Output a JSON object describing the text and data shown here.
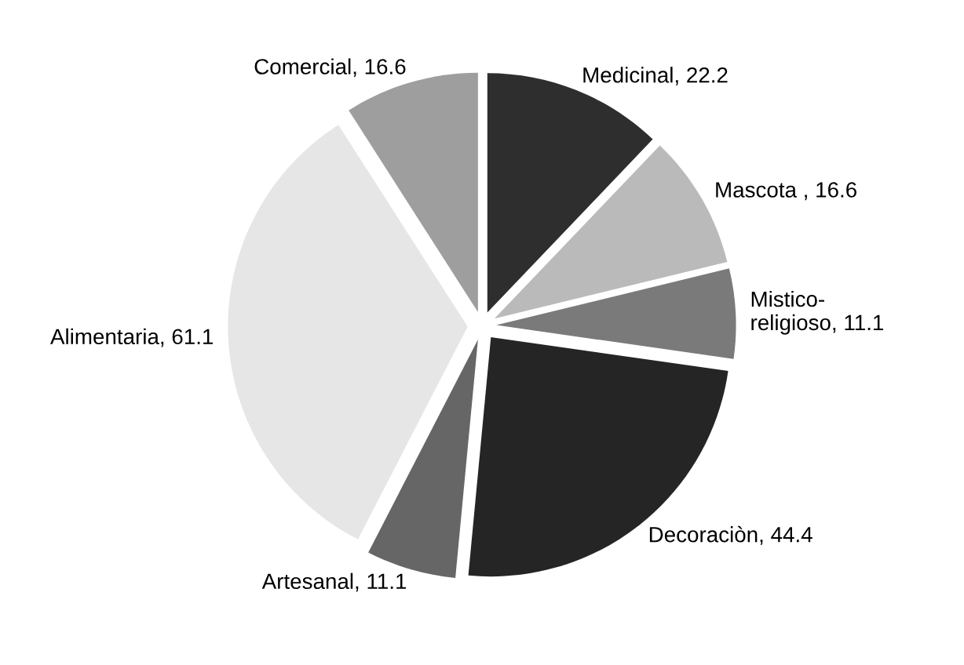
{
  "chart_data": {
    "type": "pie",
    "categories": [
      "Medicinal",
      "Mascota ",
      "Mistico-\nreligioso",
      "Decoraciòn",
      "Artesanal",
      "Alimentaria",
      "Comercial"
    ],
    "values": [
      22.2,
      16.6,
      11.1,
      44.4,
      11.1,
      61.1,
      16.6
    ],
    "colors": [
      "#2e2e2e",
      "#bababa",
      "#7a7a7a",
      "#252525",
      "#666666",
      "#e6e6e6",
      "#9e9e9e"
    ],
    "value_labels": [
      ", 22.2",
      ", 16.6",
      ", 11.1",
      ", 44.4",
      ", 11.1",
      ", 61.1",
      ", 16.6"
    ],
    "legend": false
  }
}
